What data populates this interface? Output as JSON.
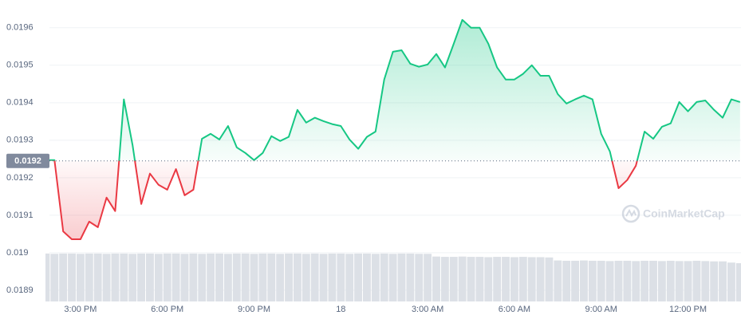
{
  "chart_data": {
    "type": "line",
    "categories": [
      null,
      null,
      null,
      null,
      "3:00 PM",
      null,
      null,
      null,
      null,
      null,
      null,
      null,
      null,
      null,
      "6:00 PM",
      null,
      null,
      null,
      null,
      null,
      null,
      null,
      null,
      null,
      "9:00 PM",
      null,
      null,
      null,
      null,
      null,
      null,
      null,
      null,
      null,
      "18",
      null,
      null,
      null,
      null,
      null,
      null,
      null,
      null,
      null,
      "3:00 AM",
      null,
      null,
      null,
      null,
      null,
      null,
      null,
      null,
      null,
      "6:00 AM",
      null,
      null,
      null,
      null,
      null,
      null,
      null,
      null,
      null,
      "9:00 AM",
      null,
      null,
      null,
      null,
      null,
      null,
      null,
      null,
      null,
      "12:00 PM",
      null,
      null,
      null,
      null,
      null,
      null
    ],
    "values": [
      0.019247,
      0.019247,
      0.019057,
      0.019036,
      0.019036,
      0.019083,
      0.019068,
      0.019147,
      0.019111,
      0.019409,
      0.019287,
      0.01913,
      0.019211,
      0.019181,
      0.019168,
      0.019223,
      0.019153,
      0.019168,
      0.019304,
      0.019317,
      0.019302,
      0.019338,
      0.019281,
      0.019266,
      0.019247,
      0.019266,
      0.019311,
      0.019298,
      0.019309,
      0.019381,
      0.019347,
      0.01936,
      0.019351,
      0.019343,
      0.019338,
      0.019302,
      0.019277,
      0.019309,
      0.019323,
      0.019462,
      0.019536,
      0.01954,
      0.019504,
      0.019496,
      0.019502,
      0.01953,
      0.019494,
      0.019557,
      0.019621,
      0.0196,
      0.0196,
      0.019557,
      0.019494,
      0.019462,
      0.019462,
      0.019477,
      0.0195,
      0.019472,
      0.019472,
      0.019423,
      0.019398,
      0.019409,
      0.019419,
      0.019409,
      0.019317,
      0.01927,
      0.019172,
      0.019194,
      0.019232,
      0.019323,
      0.019304,
      0.019336,
      0.019345,
      0.019402,
      0.019377,
      0.019402,
      0.019406,
      0.019381,
      0.01936,
      0.019409,
      0.019402
    ],
    "up_color": "#16c784",
    "down_color": "#ea3943",
    "reference": {
      "value": 0.019245,
      "label": "0.0192"
    },
    "ylim": [
      0.01887,
      0.019674
    ],
    "yticks": [
      0.0189,
      0.019,
      0.0191,
      0.0192,
      0.0193,
      0.0194,
      0.0195,
      0.0196
    ],
    "grid": true,
    "volume": [
      15.9,
      15.8,
      15.9,
      15.9,
      15.8,
      15.9,
      15.9,
      15.8,
      15.9,
      15.9,
      15.8,
      15.9,
      15.9,
      15.8,
      15.9,
      15.9,
      15.8,
      15.9,
      15.8,
      15.9,
      15.9,
      15.8,
      15.9,
      15.9,
      15.8,
      15.9,
      15.9,
      15.8,
      15.9,
      15.9,
      15.8,
      15.9,
      15.8,
      15.9,
      15.9,
      15.8,
      15.9,
      15.9,
      15.8,
      15.9,
      15.8,
      15.9,
      15.9,
      15.8,
      15.8,
      14.9,
      14.8,
      14.8,
      14.9,
      14.8,
      14.8,
      14.7,
      14.8,
      14.8,
      14.7,
      14.8,
      14.7,
      14.7,
      14.6,
      13.6,
      13.5,
      13.5,
      13.6,
      13.5,
      13.5,
      13.4,
      13.5,
      13.5,
      13.4,
      13.5,
      13.5,
      13.4,
      13.5,
      13.4,
      13.4,
      13.5,
      13.4,
      13.3,
      13.3,
      12.9,
      12.7
    ],
    "volume_color": "#dce0e6",
    "y2lim": [
      0,
      100
    ],
    "watermark": "CoinMarketCap"
  }
}
